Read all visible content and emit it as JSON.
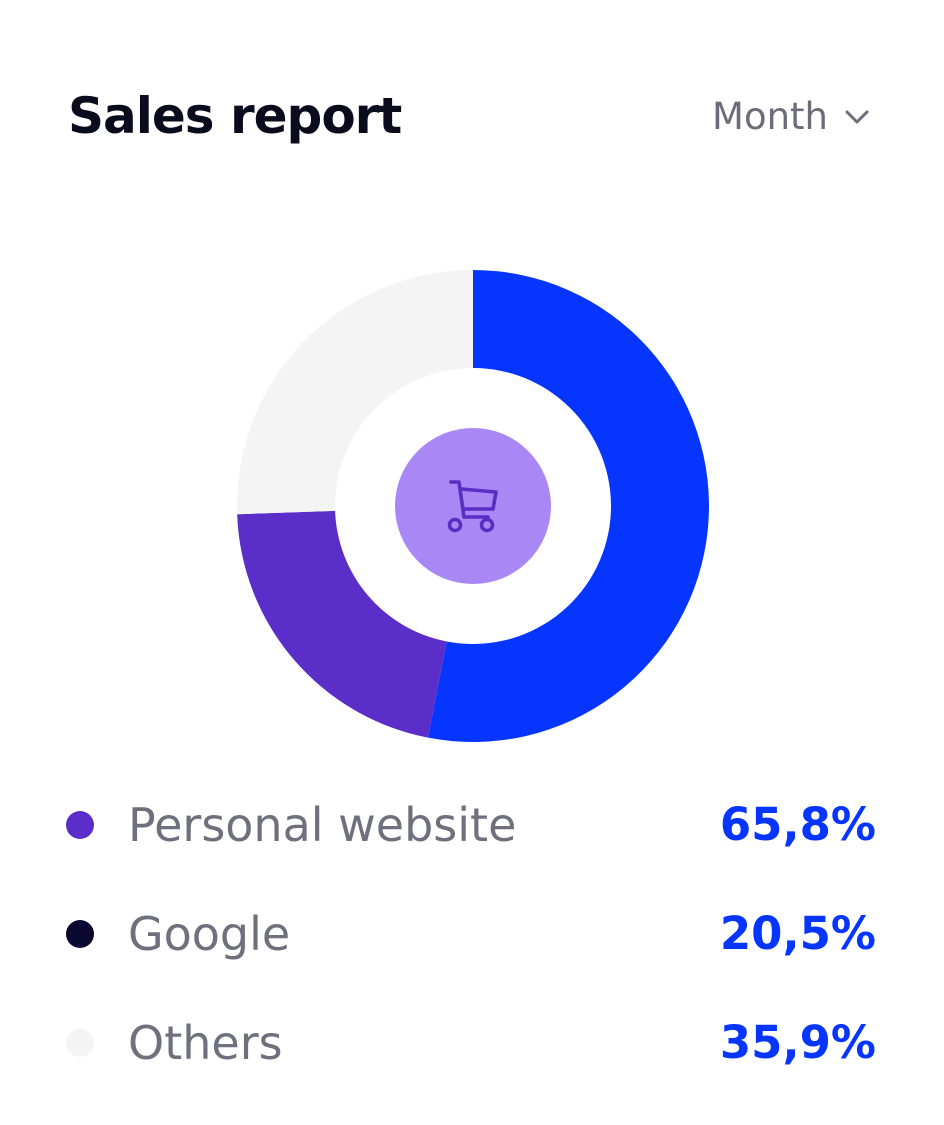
{
  "header": {
    "title": "Sales report",
    "period": {
      "selected": "Month"
    }
  },
  "center_icon": "shopping-cart-icon",
  "colors": {
    "blue": "#0535ff",
    "purple": "#5b2ec9",
    "light": "#f4f4f5",
    "dark": "#0a0830",
    "center_disc": "#a987f5",
    "cart_stroke": "#5a2ec2"
  },
  "chart_data": {
    "type": "pie",
    "variant": "donut",
    "slices": [
      {
        "label": "Personal website",
        "display": "65,8%",
        "value": 65.8
      },
      {
        "label": "Google",
        "display": "20,5%",
        "value": 20.5
      },
      {
        "label": "Others",
        "display": "35,9%",
        "value": 35.9
      }
    ],
    "drawn_segments": [
      {
        "color": "#0535ff",
        "sweep_degrees": 191
      },
      {
        "color": "#5b2ec9",
        "sweep_degrees": 77
      },
      {
        "color": "#f4f4f5",
        "sweep_degrees": 92
      }
    ],
    "legend": {
      "position": "bottom",
      "items": [
        {
          "label": "Personal website",
          "value": "65,8%",
          "dot_color": "#5b2ec9"
        },
        {
          "label": "Google",
          "value": "20,5%",
          "dot_color": "#0a0830"
        },
        {
          "label": "Others",
          "value": "35,9%",
          "dot_color": "#f4f4f5"
        }
      ]
    }
  }
}
